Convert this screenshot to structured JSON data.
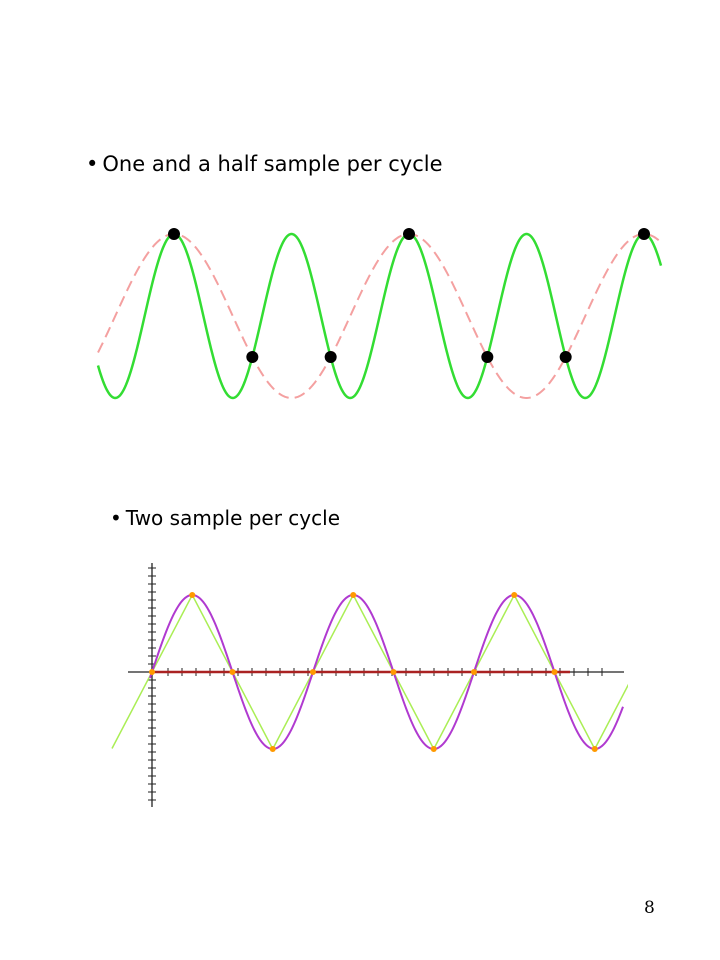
{
  "slide": {
    "bullet_char": "•",
    "line1": "One and a half sample per cycle",
    "line2": "Two sample per cycle",
    "page_number": "8"
  },
  "colors": {
    "signal": "#33dd33",
    "alias": "#f4a0a0",
    "sample_dot": "#000000",
    "sine2": "#b03ad0",
    "triangle": "#aaee55",
    "axis": "#222222",
    "baseline": "#aa2222",
    "sample2": "#ff9900"
  }
}
